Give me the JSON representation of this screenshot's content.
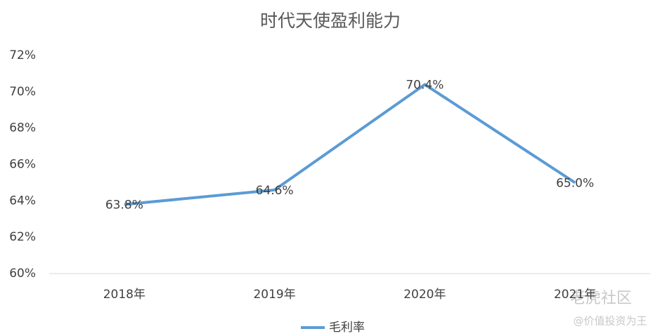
{
  "chart_data": {
    "type": "line",
    "title": "时代天使盈利能力",
    "categories": [
      "2018年",
      "2019年",
      "2020年",
      "2021年"
    ],
    "series": [
      {
        "name": "毛利率",
        "color": "#5b9bd5",
        "values": [
          63.8,
          64.6,
          70.4,
          65.0
        ],
        "value_labels": [
          "63.8%",
          "64.6%",
          "70.4%",
          "65.0%"
        ]
      }
    ],
    "ylim": [
      60,
      72
    ],
    "yticks": [
      {
        "value": 60,
        "label": "60%"
      },
      {
        "value": 62,
        "label": "62%"
      },
      {
        "value": 64,
        "label": "64%"
      },
      {
        "value": 66,
        "label": "66%"
      },
      {
        "value": 68,
        "label": "68%"
      },
      {
        "value": 70,
        "label": "70%"
      },
      {
        "value": 72,
        "label": "72%"
      }
    ],
    "grid": false,
    "legend": "bottom"
  },
  "watermark": {
    "brand": "老虎社区",
    "handle": "@价值投资为王"
  }
}
